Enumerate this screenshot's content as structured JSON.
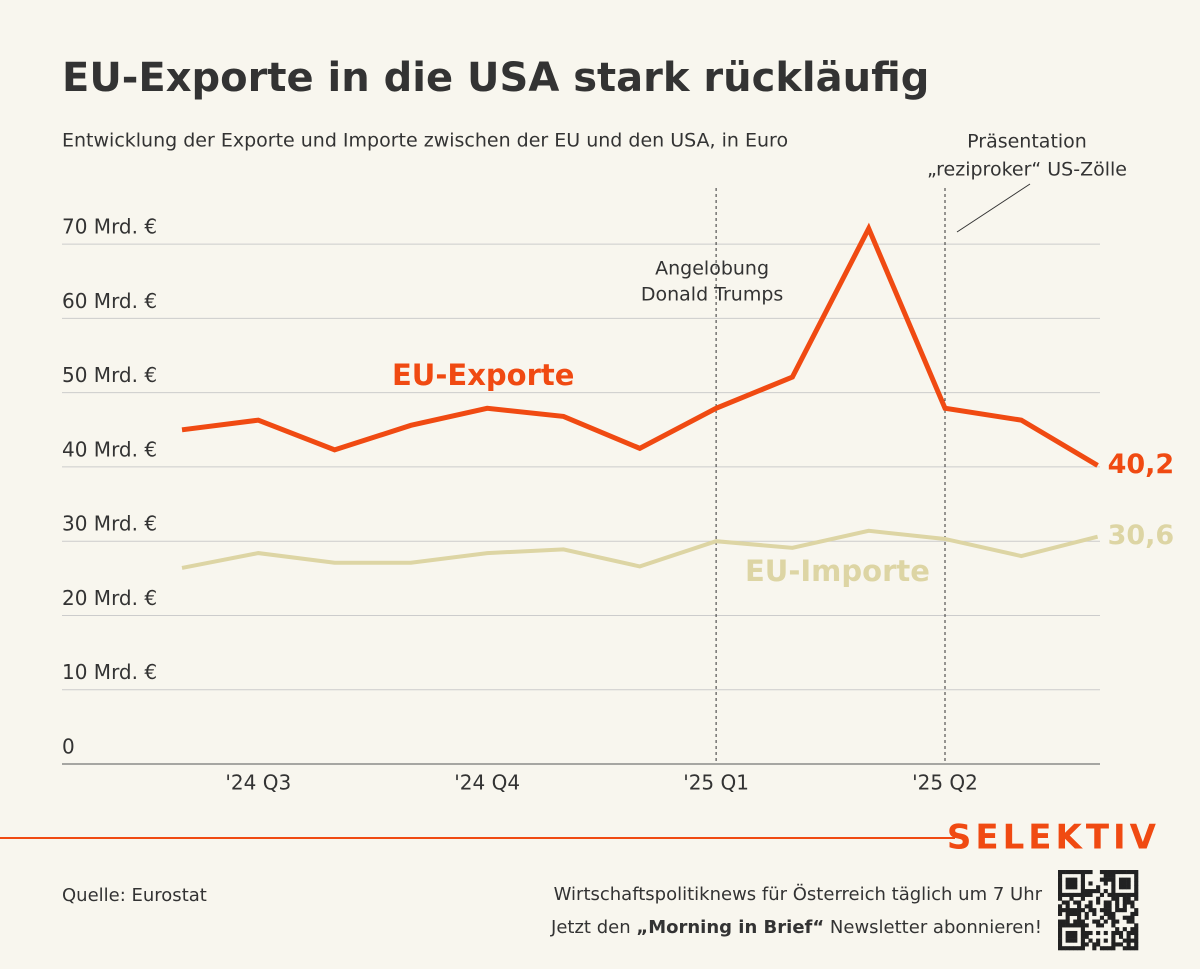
{
  "chart_data": {
    "type": "line",
    "title": "EU-Exporte in die USA stark rückläufig",
    "subtitle": "Entwicklung der Exporte und Importe zwischen der EU und den USA, in Euro",
    "categories": [
      null,
      "'24 Q3",
      null,
      null,
      "'24 Q4",
      null,
      null,
      "'25 Q1",
      null,
      null,
      "'25 Q2",
      null,
      null
    ],
    "series": [
      {
        "name": "EU-Exporte",
        "color": "#f04a12",
        "values": [
          45.0,
          46.3,
          42.3,
          45.6,
          47.9,
          46.8,
          42.5,
          47.9,
          52.1,
          72.1,
          47.9,
          46.3,
          40.2
        ],
        "value_labels": [
          null,
          null,
          null,
          null,
          null,
          null,
          null,
          null,
          null,
          null,
          null,
          null,
          "40,2"
        ]
      },
      {
        "name": "EU-Importe",
        "color": "#ddd5a4",
        "values": [
          26.4,
          28.4,
          27.1,
          27.1,
          28.4,
          28.9,
          26.6,
          30.0,
          29.1,
          31.4,
          30.3,
          28.0,
          30.6
        ],
        "value_labels": [
          null,
          null,
          null,
          null,
          null,
          null,
          null,
          null,
          null,
          null,
          null,
          null,
          "30,6"
        ]
      }
    ],
    "ylim": [
      0,
      75
    ],
    "yticks": [
      0,
      {
        "value": 10,
        "label": "10 Mrd. €"
      },
      {
        "value": 20,
        "label": "20 Mrd. €"
      },
      {
        "value": 30,
        "label": "30 Mrd. €"
      },
      {
        "value": 40,
        "label": "40 Mrd. €"
      },
      {
        "value": 50,
        "label": "50 Mrd. €"
      },
      {
        "value": 60,
        "label": "60 Mrd. €"
      },
      {
        "value": 70,
        "label": "70 Mrd. €"
      }
    ],
    "grid": true,
    "annotations": [
      [
        "Angelobung",
        "Donald Trumps"
      ],
      [
        "Präsentation",
        "„reziproker“ US-Zölle"
      ]
    ]
  },
  "footer": {
    "source": "Quelle: Eurostat",
    "brand": "SELEKTIV",
    "line1": "Wirtschaftspolitiknews für Österreich täglich um 7 Uhr",
    "line2": [
      "Jetzt den ",
      "„Morning in Brief“",
      " Newsletter abonnieren!"
    ]
  }
}
